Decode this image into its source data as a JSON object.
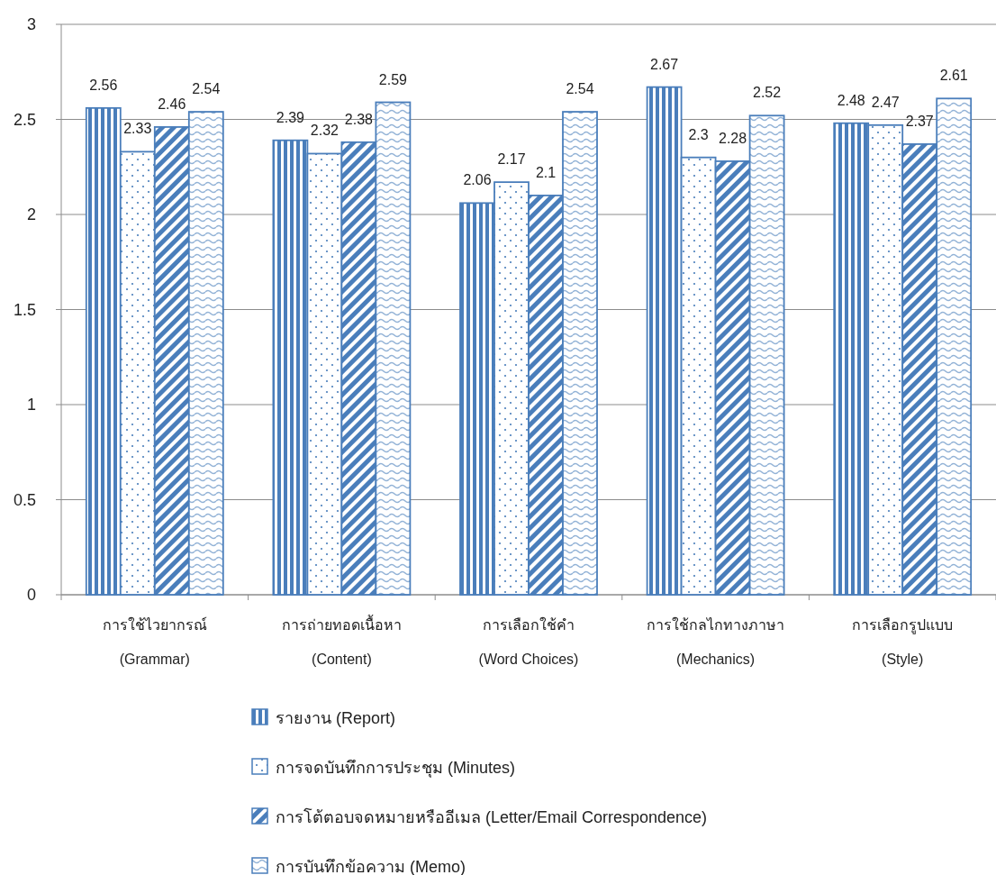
{
  "chart_data": {
    "type": "bar",
    "categories": [
      "การใช้ไวยากรณ์\n(Grammar)",
      "การถ่ายทอดเนื้อหา\n(Content)",
      "การเลือกใช้คำ\n(Word Choices)",
      "การใช้กลไกทางภาษา\n(Mechanics)",
      "การเลือกรูปแบบ\n(Style)"
    ],
    "series": [
      {
        "name": "รายงาน (Report)",
        "color": "#4a7ebb",
        "values": [
          2.56,
          2.39,
          2.06,
          2.67,
          2.48
        ]
      },
      {
        "name": "การจดบันทึกการประชุม (Minutes)",
        "color": "#4a7ebb",
        "values": [
          2.33,
          2.32,
          2.17,
          2.3,
          2.47
        ]
      },
      {
        "name": "การโต้ตอบจดหมายหรืออีเมล (Letter/Email Correspondence)",
        "color": "#4a7ebb",
        "values": [
          2.46,
          2.38,
          2.1,
          2.28,
          2.37
        ]
      },
      {
        "name": "การบันทึกข้อความ (Memo)",
        "color": "#4a7ebb",
        "values": [
          2.54,
          2.59,
          2.54,
          2.52,
          2.61
        ]
      }
    ],
    "ylim": [
      0,
      3
    ],
    "yticks": [
      0,
      0.5,
      1,
      1.5,
      2,
      2.5,
      3
    ],
    "grid": "y",
    "legend": "bottom",
    "data_labels": true
  }
}
